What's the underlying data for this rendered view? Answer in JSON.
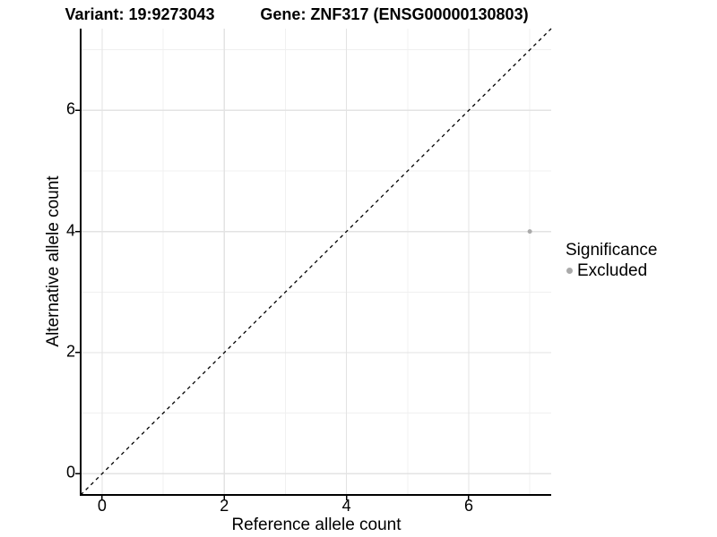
{
  "titles": {
    "variant": "Variant: 19:9273043",
    "gene": "Gene: ZNF317 (ENSG00000130803)"
  },
  "chart_data": {
    "type": "scatter",
    "title_left": "Variant: 19:9273043",
    "title_right": "Gene: ZNF317 (ENSG00000130803)",
    "xlabel": "Reference allele count",
    "ylabel": "Alternative allele count",
    "xlim": [
      -0.35,
      7.35
    ],
    "ylim": [
      -0.35,
      7.35
    ],
    "x_ticks": [
      0,
      2,
      4,
      6
    ],
    "y_ticks": [
      0,
      2,
      4,
      6
    ],
    "x_minor_ticks": [
      1,
      3,
      5,
      7
    ],
    "y_minor_ticks": [
      1,
      3,
      5,
      7
    ],
    "grid": true,
    "points": [
      {
        "x": 7,
        "y": 4,
        "series": "Excluded"
      }
    ],
    "reference_line": {
      "type": "identity",
      "slope": 1,
      "intercept": 0,
      "style": "dashed",
      "color": "#000000"
    },
    "legend": {
      "title": "Significance",
      "position": "right",
      "items": [
        {
          "label": "Excluded",
          "color": "#aaaaaa"
        }
      ]
    }
  },
  "colors": {
    "background": "#ffffff",
    "grid_major": "#e3e3e3",
    "grid_minor": "#f0f0f0",
    "axis_line": "#000000",
    "tick_mark": "#000000",
    "text": "#000000",
    "point": "#aaaaaa"
  }
}
